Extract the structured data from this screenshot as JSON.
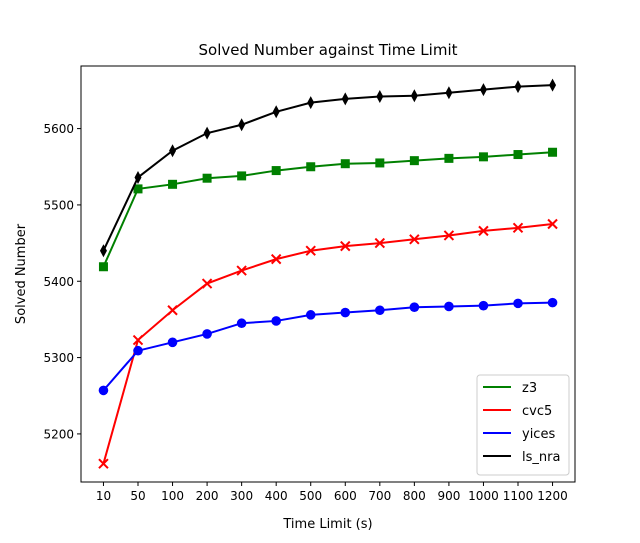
{
  "chart_data": {
    "type": "line",
    "title": "Solved Number against Time Limit",
    "xlabel": "Time Limit (s)",
    "ylabel": "Solved Number",
    "categories": [
      "10",
      "50",
      "100",
      "200",
      "300",
      "400",
      "500",
      "600",
      "700",
      "800",
      "900",
      "1000",
      "1100",
      "1200"
    ],
    "ylim": [
      5137,
      5682
    ],
    "yticks": [
      5200,
      5300,
      5400,
      5500,
      5600
    ],
    "grid": false,
    "legend_position": "lower-right",
    "series": [
      {
        "name": "z3",
        "color": "#008000",
        "marker": "square",
        "values": [
          5419,
          5521,
          5527,
          5535,
          5538,
          5545,
          5550,
          5554,
          5555,
          5558,
          5561,
          5563,
          5566,
          5569
        ]
      },
      {
        "name": "cvc5",
        "color": "#ff0000",
        "marker": "x",
        "values": [
          5161,
          5323,
          5362,
          5397,
          5414,
          5429,
          5440,
          5446,
          5450,
          5455,
          5460,
          5466,
          5470,
          5475
        ]
      },
      {
        "name": "yices",
        "color": "#0000ff",
        "marker": "circle",
        "values": [
          5257,
          5309,
          5320,
          5331,
          5345,
          5348,
          5356,
          5359,
          5362,
          5366,
          5367,
          5368,
          5371,
          5372
        ]
      },
      {
        "name": "ls_nra",
        "color": "#000000",
        "marker": "thin-diamond",
        "values": [
          5440,
          5536,
          5571,
          5594,
          5605,
          5622,
          5634,
          5639,
          5642,
          5643,
          5647,
          5651,
          5655,
          5657
        ]
      }
    ]
  }
}
